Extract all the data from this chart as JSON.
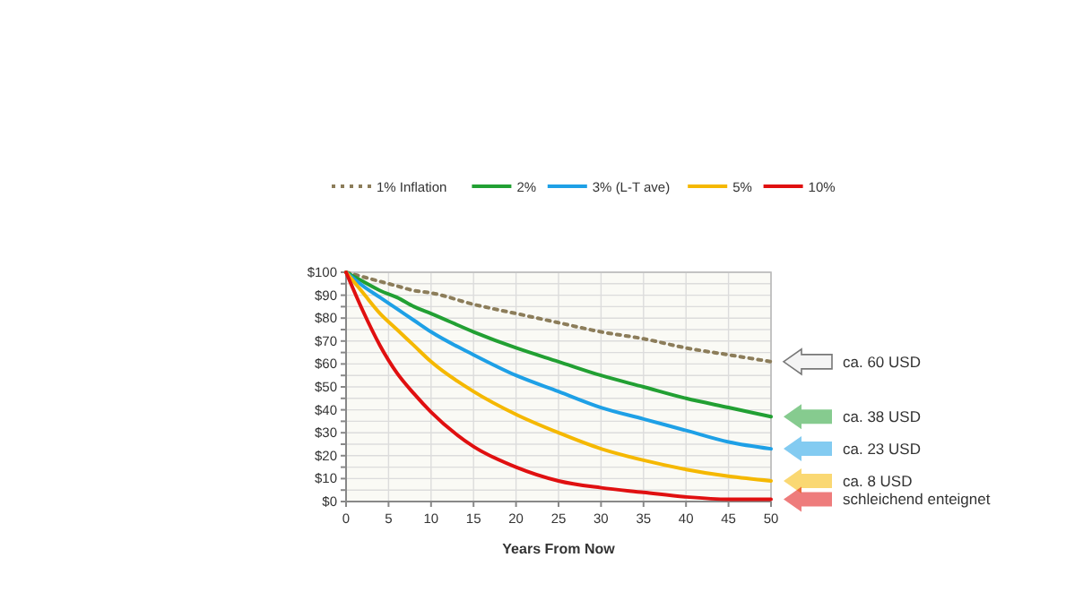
{
  "chart_data": {
    "type": "line",
    "xlabel": "Years From Now",
    "x": [
      0,
      2,
      4,
      6,
      8,
      10,
      15,
      20,
      25,
      30,
      35,
      40,
      45,
      50
    ],
    "series": [
      {
        "name": "1% Inflation",
        "color": "#8c7d5a",
        "line_style": "dotted",
        "values": [
          100,
          98,
          96,
          94,
          92,
          91,
          86,
          82,
          78,
          74,
          71,
          67,
          64,
          61
        ]
      },
      {
        "name": "2%",
        "color": "#22a033",
        "values": [
          100,
          96,
          92,
          89,
          85,
          82,
          74,
          67,
          61,
          55,
          50,
          45,
          41,
          37
        ]
      },
      {
        "name": "3% (L-T ave)",
        "color": "#1ea0e6",
        "values": [
          100,
          94,
          89,
          84,
          79,
          74,
          64,
          55,
          48,
          41,
          36,
          31,
          26,
          23
        ]
      },
      {
        "name": "5%",
        "color": "#f5b800",
        "values": [
          100,
          91,
          82,
          75,
          68,
          61,
          48,
          38,
          30,
          23,
          18,
          14,
          11,
          9
        ]
      },
      {
        "name": "10%",
        "color": "#e01010",
        "values": [
          100,
          83,
          68,
          56,
          47,
          39,
          24,
          15,
          9,
          6,
          4,
          2,
          1,
          1
        ]
      }
    ],
    "xlim": [
      0,
      50
    ],
    "xticks": [
      0,
      5,
      10,
      15,
      20,
      25,
      30,
      35,
      40,
      45,
      50
    ],
    "ylim": [
      0,
      100
    ],
    "yticks": [
      {
        "value": 0,
        "label": "$0"
      },
      {
        "value": 5,
        "label": null
      },
      {
        "value": 10,
        "label": "$10"
      },
      {
        "value": 15,
        "label": null
      },
      {
        "value": 20,
        "label": "$20"
      },
      {
        "value": 25,
        "label": null
      },
      {
        "value": 30,
        "label": "$30"
      },
      {
        "value": 35,
        "label": null
      },
      {
        "value": 40,
        "label": "$40"
      },
      {
        "value": 45,
        "label": null
      },
      {
        "value": 50,
        "label": "$50"
      },
      {
        "value": 55,
        "label": null
      },
      {
        "value": 60,
        "label": "$60"
      },
      {
        "value": 65,
        "label": null
      },
      {
        "value": 70,
        "label": "$70"
      },
      {
        "value": 75,
        "label": null
      },
      {
        "value": 80,
        "label": "$80"
      },
      {
        "value": 85,
        "label": null
      },
      {
        "value": 90,
        "label": "$90"
      },
      {
        "value": 95,
        "label": null
      },
      {
        "value": 100,
        "label": "$100"
      }
    ],
    "grid": true,
    "legend": "top",
    "marker": "none",
    "line_style": "solid",
    "annotations": [
      "ca. 60 USD",
      "ca. 38 USD",
      "ca. 23 USD",
      "ca. 8 USD",
      "schleichend enteignet"
    ]
  }
}
